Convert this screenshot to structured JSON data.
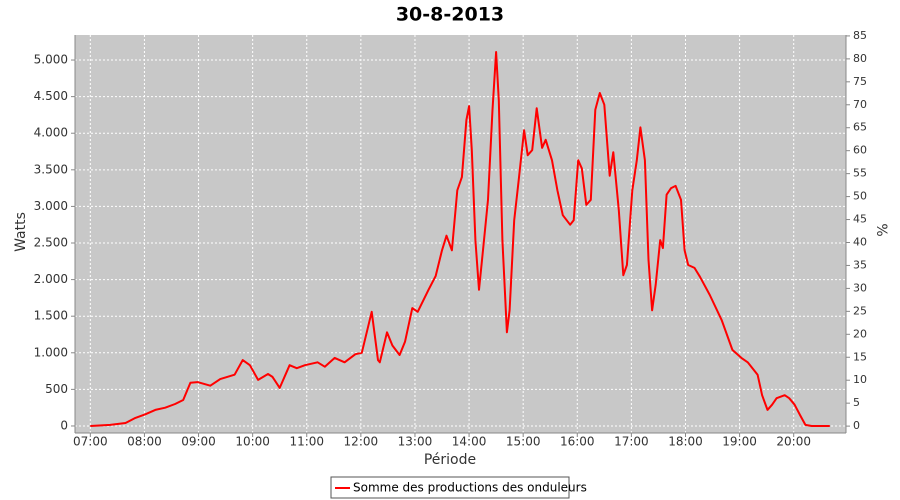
{
  "chart_data": {
    "type": "line",
    "title": "30-8-2013",
    "xlabel": "Période",
    "ylabel": "Watts",
    "y2label": "%",
    "grid": true,
    "x": [
      "07:00",
      "07:22",
      "07:39",
      "07:50",
      "08:01",
      "08:12",
      "08:23",
      "08:34",
      "08:43",
      "08:51",
      "08:59",
      "09:13",
      "09:24",
      "09:40",
      "09:49",
      "09:57",
      "10:06",
      "10:17",
      "10:22",
      "10:30",
      "10:41",
      "10:49",
      "10:58",
      "11:12",
      "11:20",
      "11:31",
      "11:42",
      "11:54",
      "12:01",
      "12:12",
      "12:19",
      "12:21",
      "12:29",
      "12:35",
      "12:43",
      "12:49",
      "12:57",
      "13:03",
      "13:15",
      "13:23",
      "13:30",
      "13:35",
      "13:41",
      "13:47",
      "13:52",
      "13:57",
      "14:00",
      "14:03",
      "14:07",
      "14:11",
      "14:16",
      "14:21",
      "14:26",
      "14:30",
      "14:33",
      "14:37",
      "14:42",
      "14:45",
      "14:50",
      "14:55",
      "15:01",
      "15:05",
      "15:10",
      "15:15",
      "15:21",
      "15:25",
      "15:32",
      "15:38",
      "15:44",
      "15:52",
      "15:56",
      "16:01",
      "16:05",
      "16:10",
      "16:15",
      "16:20",
      "16:25",
      "16:30",
      "16:36",
      "16:40",
      "16:46",
      "16:51",
      "16:55",
      "17:01",
      "17:06",
      "17:10",
      "17:15",
      "17:19",
      "17:23",
      "17:27",
      "17:32",
      "17:35",
      "17:39",
      "17:44",
      "17:49",
      "17:55",
      "17:59",
      "18:03",
      "18:10",
      "18:16",
      "18:27",
      "18:40",
      "18:52",
      "19:02",
      "19:09",
      "19:20",
      "19:25",
      "19:31",
      "19:36",
      "19:41",
      "19:50",
      "19:55",
      "20:01",
      "20:07",
      "20:13",
      "20:20",
      "20:40"
    ],
    "series": [
      {
        "name": "Somme des productions des onduleurs",
        "color": "#ff0000",
        "values": [
          0,
          15,
          40,
          110,
          160,
          220,
          250,
          300,
          355,
          590,
          600,
          550,
          640,
          700,
          900,
          830,
          630,
          710,
          670,
          520,
          830,
          790,
          830,
          870,
          810,
          930,
          870,
          980,
          1000,
          1560,
          900,
          870,
          1280,
          1100,
          970,
          1150,
          1610,
          1560,
          1860,
          2050,
          2400,
          2600,
          2400,
          3220,
          3400,
          4180,
          4370,
          3770,
          2540,
          1860,
          2470,
          3090,
          4320,
          5110,
          4450,
          2540,
          1280,
          1580,
          2810,
          3360,
          4040,
          3700,
          3770,
          4340,
          3800,
          3910,
          3630,
          3220,
          2880,
          2750,
          2810,
          3630,
          3520,
          3020,
          3090,
          4320,
          4550,
          4390,
          3420,
          3740,
          2950,
          2060,
          2200,
          3220,
          3630,
          4080,
          3630,
          2270,
          1580,
          1930,
          2540,
          2430,
          3160,
          3250,
          3280,
          3090,
          2400,
          2200,
          2160,
          2040,
          1790,
          1450,
          1040,
          930,
          870,
          700,
          420,
          220,
          290,
          380,
          420,
          380,
          290,
          150,
          15,
          0,
          0
        ]
      }
    ],
    "xlim": [
      "06:43",
      "20:58"
    ],
    "xticks": [
      "07:00",
      "08:00",
      "09:00",
      "10:00",
      "11:00",
      "12:00",
      "13:00",
      "14:00",
      "15:00",
      "16:00",
      "17:00",
      "18:00",
      "19:00",
      "20:00"
    ],
    "ylim": [
      -96,
      5342
    ],
    "yticks": [
      0,
      500,
      {
        "value": 1000,
        "label": "1.000"
      },
      {
        "value": 1500,
        "label": "1.500"
      },
      {
        "value": 2000,
        "label": "2.000"
      },
      {
        "value": 2500,
        "label": "2.500"
      },
      {
        "value": 3000,
        "label": "3.000"
      },
      {
        "value": 3500,
        "label": "3.500"
      },
      {
        "value": 4000,
        "label": "4.000"
      },
      {
        "value": 4500,
        "label": "4.500"
      },
      {
        "value": 5000,
        "label": "5.000"
      }
    ],
    "y2lim": [
      -1.5,
      85.2
    ],
    "y2ticks": [
      0,
      5,
      10,
      15,
      20,
      25,
      30,
      35,
      40,
      45,
      50,
      55,
      60,
      65,
      70,
      75,
      80,
      85
    ]
  }
}
